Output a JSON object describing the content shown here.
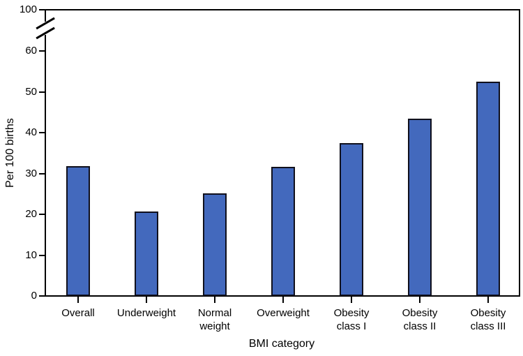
{
  "figure": {
    "kind": "bar chart",
    "background": "#ffffff"
  },
  "chart_data": {
    "type": "bar",
    "title": "",
    "categories": [
      "Overall",
      "Underweight",
      "Normal weight",
      "Overweight",
      "Obesity class I",
      "Obesity class II",
      "Obesity class III"
    ],
    "category_lines": [
      [
        "Overall"
      ],
      [
        "Underweight"
      ],
      [
        "Normal",
        "weight"
      ],
      [
        "Overweight"
      ],
      [
        "Obesity",
        "class I"
      ],
      [
        "Obesity",
        "class II"
      ],
      [
        "Obesity",
        "class III"
      ]
    ],
    "values": [
      31.8,
      20.7,
      25.2,
      31.6,
      37.4,
      43.4,
      52.5
    ],
    "xlabel": "BMI category",
    "ylabel": "Per 100 births",
    "yticks": [
      0,
      10,
      20,
      30,
      40,
      50,
      60
    ],
    "ytick_top_broken": "100",
    "axis_break_between": [
      60,
      100
    ],
    "ylim_display": [
      0,
      60
    ],
    "grid": false,
    "legend": null,
    "colors": {
      "bar_fill": "#4369bd",
      "bar_border": "#10101c",
      "axis": "#000000",
      "text": "#000000"
    }
  }
}
